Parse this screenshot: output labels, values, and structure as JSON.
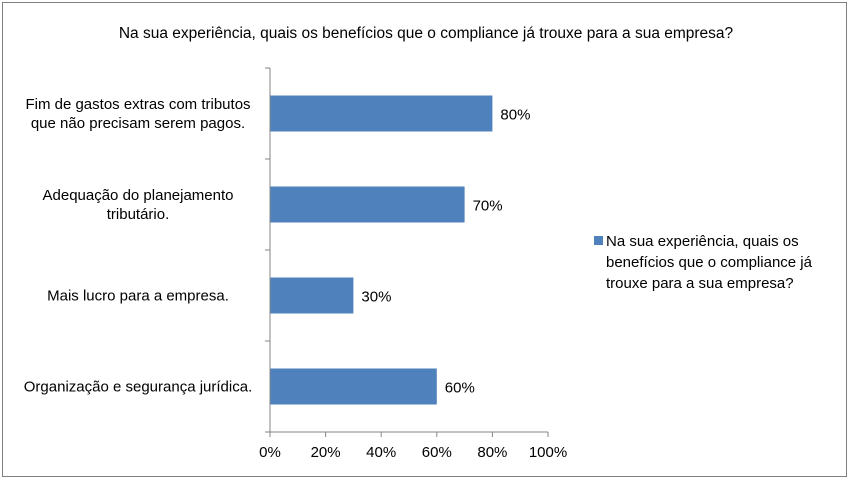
{
  "chart_data": {
    "type": "bar",
    "orientation": "horizontal",
    "title": "Na sua experiência, quais os benefícios que o compliance já trouxe para a sua empresa?",
    "categories": [
      [
        "Fim de gastos extras com tributos",
        "que não precisam serem pagos."
      ],
      [
        "Adequação do planejamento",
        "tributário."
      ],
      [
        "Mais lucro para a empresa."
      ],
      [
        "Organização e segurança jurídica."
      ]
    ],
    "series": [
      {
        "name": "Na sua experiência, quais os benefícios que o compliance já trouxe para a sua empresa?",
        "name_lines": [
          "Na sua experiência, quais os",
          "benefícios que o compliance já",
          "trouxe para a sua empresa?"
        ],
        "values": [
          80,
          70,
          30,
          60
        ],
        "color": "#4f81bd"
      }
    ],
    "data_labels": [
      "80%",
      "70%",
      "30%",
      "60%"
    ],
    "xlim": [
      0,
      100
    ],
    "xticks": [
      "0%",
      "20%",
      "40%",
      "60%",
      "80%",
      "100%"
    ],
    "xlabel": "",
    "ylabel": "",
    "grid": false,
    "legend_position": "right",
    "axis_color": "#868686"
  }
}
